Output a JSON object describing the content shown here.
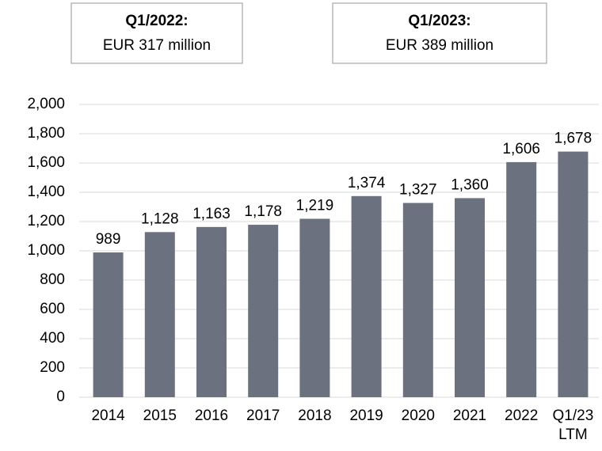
{
  "annotations": [
    {
      "title": "Q1/2022:",
      "text": "EUR 317 million"
    },
    {
      "title": "Q1/2023:",
      "text": "EUR 389 million"
    }
  ],
  "chart_data": {
    "type": "bar",
    "categories": [
      "2014",
      "2015",
      "2016",
      "2017",
      "2018",
      "2019",
      "2020",
      "2021",
      "2022",
      "Q1/23\nLTM"
    ],
    "values": [
      989,
      1128,
      1163,
      1178,
      1219,
      1374,
      1327,
      1360,
      1606,
      1678
    ],
    "value_labels": [
      "989",
      "1,128",
      "1,163",
      "1,178",
      "1,219",
      "1,374",
      "1,327",
      "1,360",
      "1,606",
      "1,678"
    ],
    "color": "#6b717f",
    "ylim": [
      0,
      2000
    ],
    "yticks": [
      0,
      200,
      400,
      600,
      800,
      {
        "value": 1000,
        "label": "1,000"
      },
      {
        "value": 1200,
        "label": "1,200"
      },
      {
        "value": 1400,
        "label": "1,400"
      },
      {
        "value": 1600,
        "label": "1,600"
      },
      {
        "value": 1800,
        "label": "1,800"
      },
      {
        "value": 2000,
        "label": "2,000"
      }
    ],
    "grid": true
  }
}
